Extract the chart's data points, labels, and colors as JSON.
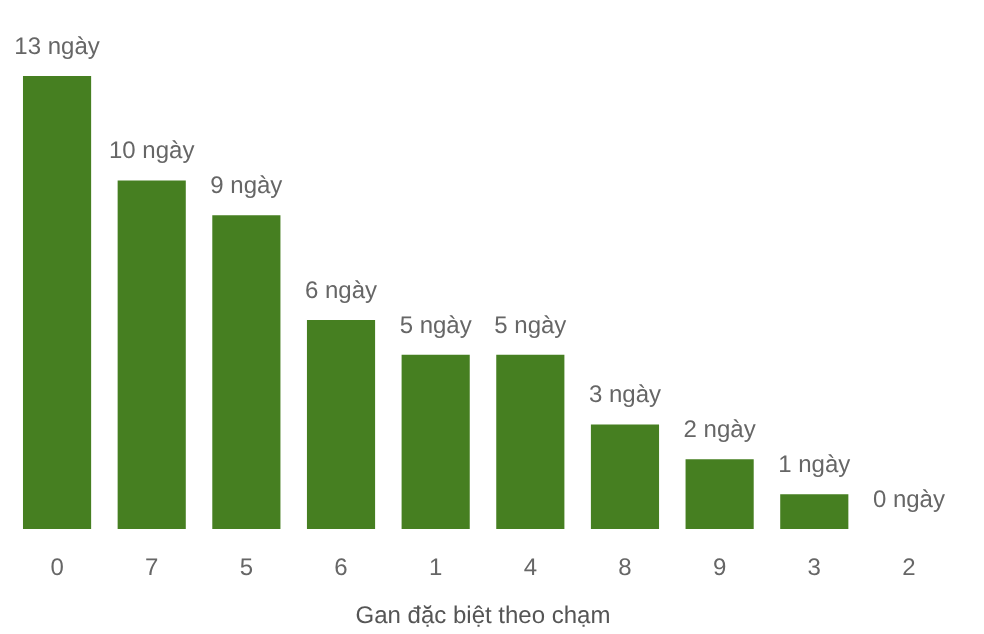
{
  "chart_data": {
    "type": "bar",
    "xlabel": "Gan đặc biệt theo chạm",
    "categories": [
      "0",
      "7",
      "5",
      "6",
      "1",
      "4",
      "8",
      "9",
      "3",
      "2"
    ],
    "values": [
      13,
      10,
      9,
      6,
      5,
      5,
      3,
      2,
      1,
      0
    ],
    "value_labels": [
      "13 ngày",
      "10 ngày",
      "9 ngày",
      "6 ngày",
      "5 ngày",
      "5 ngày",
      "3 ngày",
      "2 ngày",
      "1 ngày",
      "0 ngày"
    ],
    "color": "#467f21"
  }
}
